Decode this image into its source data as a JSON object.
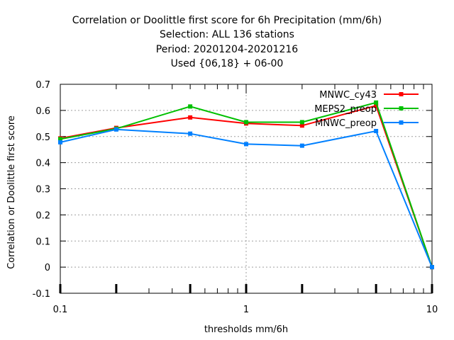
{
  "chart_data": {
    "type": "line",
    "title_lines": [
      "Correlation or Doolittle first score  for 6h Precipitation (mm/6h)",
      "Selection: ALL    136 stations",
      "Period: 20201204-20201216",
      "Used {06,18} + 06-00"
    ],
    "xlabel": "thresholds mm/6h",
    "ylabel": "Correlation or Doolittle first score",
    "xscale": "log",
    "xlim": [
      0.1,
      10
    ],
    "ylim": [
      -0.1,
      0.7
    ],
    "x_tick_labels": [
      "0.1",
      "1",
      "10"
    ],
    "y_tick_labels": [
      "-0.1",
      "0",
      "0.1",
      "0.2",
      "0.3",
      "0.4",
      "0.5",
      "0.6",
      "0.7"
    ],
    "grid": true,
    "legend_position": "top-right",
    "x": [
      0.1,
      0.2,
      0.5,
      1,
      2,
      5,
      10
    ],
    "series": [
      {
        "name": "MNWC_cy43",
        "color": "#ff0000",
        "values": [
          0.493,
          0.533,
          0.573,
          0.55,
          0.542,
          0.618,
          0.0
        ]
      },
      {
        "name": "MEPS2_preop",
        "color": "#00c000",
        "values": [
          0.49,
          0.53,
          0.615,
          0.555,
          0.555,
          0.63,
          0.0
        ]
      },
      {
        "name": "MNWC_preop",
        "color": "#0080ff",
        "values": [
          0.478,
          0.527,
          0.511,
          0.471,
          0.465,
          0.521,
          0.0
        ]
      }
    ]
  }
}
